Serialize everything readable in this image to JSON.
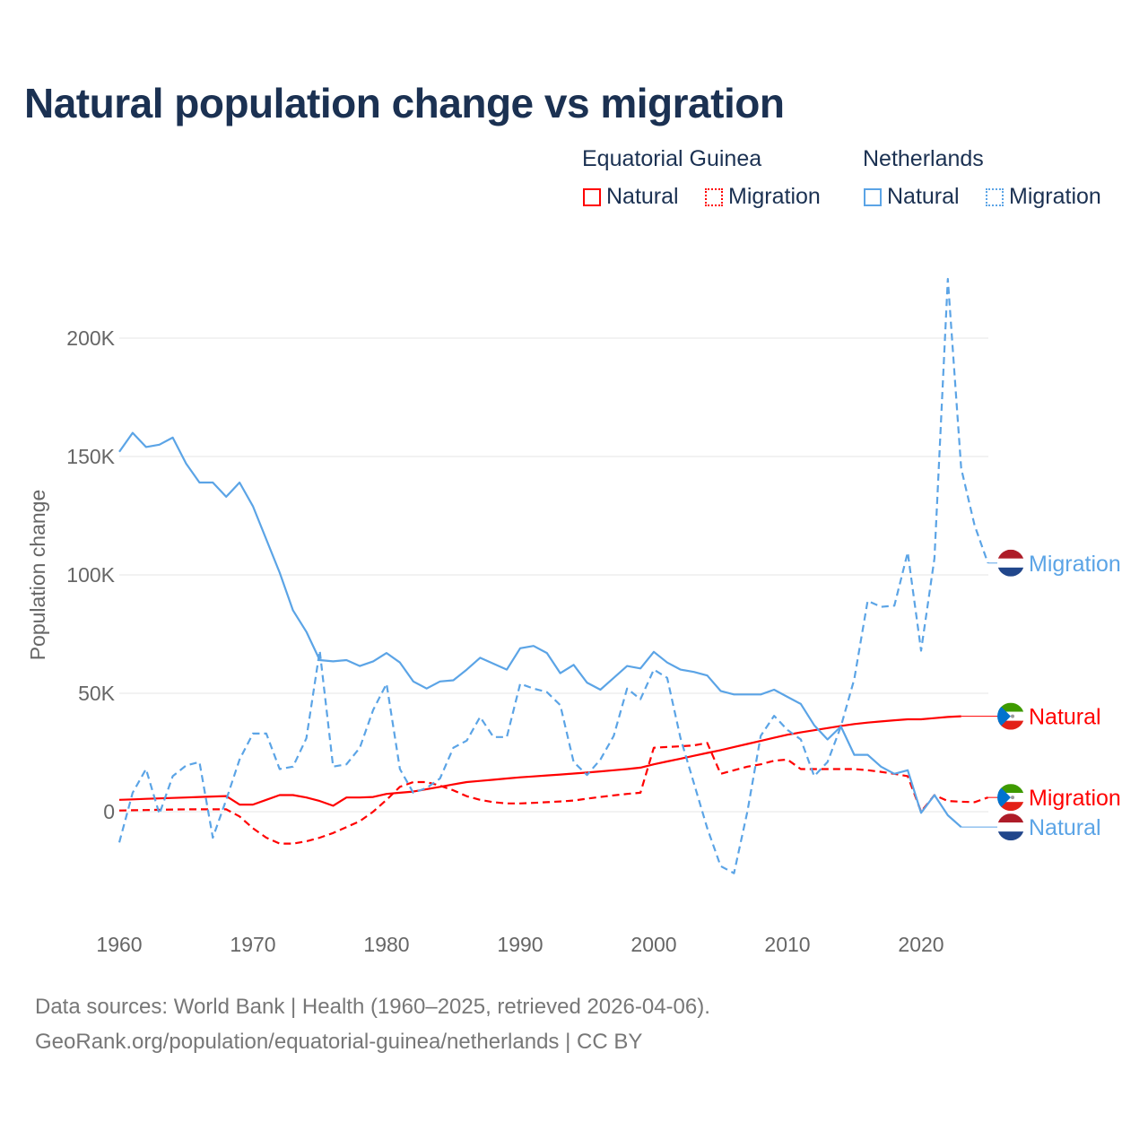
{
  "title": "Natural population change vs migration",
  "legend": {
    "groups": [
      {
        "name": "Equatorial Guinea",
        "items": [
          "Natural",
          "Migration"
        ],
        "color": "#ff0000"
      },
      {
        "name": "Netherlands",
        "items": [
          "Natural",
          "Migration"
        ],
        "color": "#5ba4e6"
      }
    ]
  },
  "footer": {
    "line1": "Data sources: World Bank | Health (1960–2025, retrieved 2026-04-06).",
    "line2": "GeoRank.org/population/equatorial-guinea/netherlands | CC BY"
  },
  "chart_data": {
    "type": "line",
    "title": "Natural population change vs migration",
    "xlabel": "",
    "ylabel": "Population change",
    "xlim": [
      1960,
      2025
    ],
    "ylim": [
      -40000,
      230000
    ],
    "x_ticks": [
      1960,
      1970,
      1980,
      1990,
      2000,
      2010,
      2020
    ],
    "x_tick_labels": [
      "1960",
      "1970",
      "1980",
      "1990",
      "2000",
      "2010",
      "2020"
    ],
    "y_ticks": [
      0,
      50000,
      100000,
      150000,
      200000
    ],
    "y_tick_labels": [
      "0",
      "50K",
      "100K",
      "150K",
      "200K"
    ],
    "grid": true,
    "legend_position": "top-right",
    "x_start": 1960,
    "units": "thousands",
    "series": [
      {
        "name": "Equatorial Guinea Natural",
        "label": "Natural",
        "color": "#ff0000",
        "dash": false,
        "flag": "equatorial-guinea",
        "values": [
          5,
          5.2,
          5.4,
          5.6,
          5.8,
          6,
          6.2,
          6.4,
          6.6,
          3,
          3,
          5,
          7,
          7,
          6,
          4.5,
          2.5,
          6,
          6,
          6.2,
          7.5,
          8,
          8.5,
          9.5,
          10.5,
          11.5,
          12.5,
          13,
          13.5,
          14,
          14.5,
          14.9,
          15.3,
          15.7,
          16.1,
          16.5,
          17,
          17.5,
          18,
          18.6,
          20,
          21.2,
          22.4,
          23.6,
          24.8,
          26,
          27.3,
          28.6,
          29.9,
          31.2,
          32.5,
          33.5,
          34.4,
          35.3,
          36.2,
          37,
          37.6,
          38.1,
          38.6,
          39,
          39,
          39.5,
          40,
          40.3,
          40.3,
          40.3
        ]
      },
      {
        "name": "Equatorial Guinea Migration",
        "label": "Migration",
        "color": "#ff0000",
        "dash": true,
        "flag": "equatorial-guinea",
        "values": [
          0.5,
          0.6,
          0.7,
          0.8,
          0.9,
          1,
          1,
          1,
          1,
          -2,
          -7,
          -11,
          -13.5,
          -13.5,
          -12.5,
          -11,
          -9,
          -6.5,
          -4,
          0,
          5,
          10.5,
          12.5,
          12.5,
          11,
          9,
          6.5,
          5,
          4,
          3.5,
          3.5,
          3.7,
          4,
          4.3,
          4.7,
          5.5,
          6.2,
          6.9,
          7.5,
          8,
          27,
          27.3,
          27.6,
          28,
          29,
          16,
          17.5,
          19,
          20,
          21.5,
          22,
          18,
          18,
          18,
          18,
          18,
          17.5,
          16.8,
          16,
          15,
          0,
          7,
          4.5,
          4.2,
          4,
          6
        ]
      },
      {
        "name": "Netherlands Natural",
        "label": "Natural",
        "color": "#5ba4e6",
        "dash": false,
        "flag": "netherlands",
        "values": [
          152,
          160,
          154,
          155,
          158,
          147,
          139,
          139,
          133,
          139,
          129,
          115,
          101,
          85,
          76,
          64,
          63.5,
          64,
          61.5,
          63.5,
          67,
          63,
          55,
          52,
          55,
          55.5,
          60,
          65,
          62.5,
          60,
          69,
          70,
          67,
          58.5,
          62,
          54.5,
          51.5,
          56.5,
          61.5,
          60.5,
          67.5,
          63,
          60,
          59,
          57.5,
          51,
          49.5,
          49.5,
          49.5,
          51.5,
          48.5,
          45.5,
          36.5,
          30.5,
          36,
          24,
          24,
          19,
          16,
          17.5,
          -0.5,
          7,
          -1.5,
          -6.5,
          -6.5,
          -6.5
        ]
      },
      {
        "name": "Netherlands Migration",
        "label": "Migration",
        "color": "#5ba4e6",
        "dash": true,
        "flag": "netherlands",
        "values": [
          -13,
          8,
          18,
          -1,
          15,
          19.5,
          21,
          -11,
          5,
          22,
          33,
          33,
          18,
          19,
          31,
          68,
          19,
          20,
          27,
          43,
          54,
          18,
          8,
          10,
          14,
          27,
          30,
          40,
          31.5,
          31.5,
          54,
          52,
          50.5,
          45,
          21,
          15.5,
          22,
          32,
          52,
          47.5,
          60,
          56.5,
          31,
          12,
          -7,
          -23,
          -26,
          0,
          32,
          40.5,
          34.5,
          30.5,
          15,
          21,
          36,
          56,
          89,
          86.5,
          87,
          109.5,
          68,
          107,
          225,
          145,
          121,
          105
        ]
      }
    ]
  }
}
